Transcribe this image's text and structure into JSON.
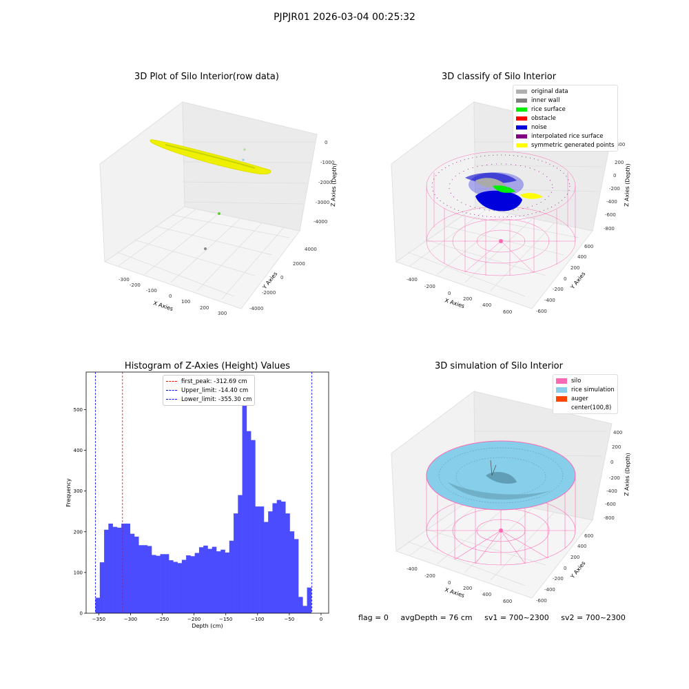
{
  "suptitle": "PJPJR01 2026-03-04 00:25:32",
  "panels": {
    "raw": {
      "title": "3D Plot of Silo Interior(row data)",
      "xlabel": "X Axies",
      "ylabel": "Y Axies",
      "zlabel": "Z Axies (Depth)",
      "xticks": [
        "-300",
        "-200",
        "-100",
        "0",
        "100",
        "200",
        "300"
      ],
      "yticks": [
        "-4000",
        "-2000",
        "0",
        "2000",
        "4000"
      ],
      "zticks": [
        "-4000",
        "-3000",
        "-2000",
        "-1000",
        "0"
      ]
    },
    "classify": {
      "title": "3D classify of Silo Interior",
      "xlabel": "X Axies",
      "ylabel": "Y Axies",
      "zlabel": "Z Axies (Depth)",
      "xticks": [
        "-400",
        "-200",
        "0",
        "200",
        "400",
        "600"
      ],
      "yticks": [
        "-600",
        "-400",
        "-200",
        "0",
        "200",
        "400",
        "600"
      ],
      "zticks": [
        "-800",
        "-600",
        "-400",
        "-200",
        "0",
        "200",
        "400"
      ],
      "legend": [
        {
          "label": "original data",
          "color": "#b0b0b0"
        },
        {
          "label": "inner wall",
          "color": "#808080"
        },
        {
          "label": "rice surface",
          "color": "#00ee00"
        },
        {
          "label": "obstacle",
          "color": "#ff0000"
        },
        {
          "label": "noise",
          "color": "#0000dd"
        },
        {
          "label": "interpolated rice surface",
          "color": "#800080"
        },
        {
          "label": "symmetric generated points",
          "color": "#ffff00"
        }
      ]
    },
    "hist": {
      "title": "Histogram of Z-Axies (Height) Values",
      "xlabel": "Depth (cm)",
      "ylabel": "Frequency",
      "legend": [
        {
          "label": "first_peak: -312.69 cm",
          "color": "#ff0000"
        },
        {
          "label": "Upper_limit: -14.40 cm",
          "color": "#0000ff"
        },
        {
          "label": "Lower_limit: -355.30 cm",
          "color": "#0000ff"
        }
      ]
    },
    "sim": {
      "title": "3D simulation of Silo Interior",
      "xlabel": "X Axies",
      "ylabel": "Y Axies",
      "zlabel": "Z Axies (Depth)",
      "xticks": [
        "-400",
        "-200",
        "0",
        "200",
        "400",
        "600"
      ],
      "yticks": [
        "-600",
        "-400",
        "-200",
        "0",
        "200",
        "400",
        "600"
      ],
      "zticks": [
        "-800",
        "-600",
        "-400",
        "-200",
        "0",
        "200",
        "400"
      ],
      "legend": [
        {
          "label": "silo",
          "color": "#ff69b4"
        },
        {
          "label": "rice simulation",
          "color": "#87ceeb"
        },
        {
          "label": "auger",
          "color": "#ff4500"
        },
        {
          "label": "center(100,8)",
          "color": "#ffffff"
        }
      ]
    }
  },
  "status": {
    "flag": "flag = 0",
    "avg": "avgDepth = 76 cm",
    "sv1": "sv1 = 700~2300",
    "sv2": "sv2 = 700~2300"
  },
  "chart_data": [
    {
      "type": "bar",
      "title": "Histogram of Z-Axies (Height) Values",
      "xlabel": "Depth (cm)",
      "ylabel": "Frequency",
      "xlim": [
        -370,
        12
      ],
      "ylim": [
        0,
        592
      ],
      "xticks": [
        -350,
        -300,
        -250,
        -200,
        -150,
        -100,
        -50,
        0
      ],
      "yticks": [
        0,
        100,
        200,
        300,
        400,
        500
      ],
      "bin_width": 6.8,
      "bin_start": -355.3,
      "values": [
        38,
        125,
        205,
        220,
        212,
        210,
        220,
        220,
        195,
        188,
        167,
        167,
        165,
        143,
        141,
        145,
        145,
        130,
        126,
        123,
        131,
        142,
        140,
        148,
        162,
        166,
        158,
        163,
        152,
        156,
        149,
        178,
        245,
        290,
        565,
        447,
        425,
        262,
        262,
        224,
        250,
        270,
        278,
        274,
        245,
        201,
        182,
        40,
        18,
        63
      ],
      "color": "#4c4cff",
      "vlines": [
        {
          "name": "first_peak: -312.69 cm",
          "x": -312.69,
          "color": "#ff0000"
        },
        {
          "name": "Upper_limit: -14.40 cm",
          "x": -14.4,
          "color": "#0000ff"
        },
        {
          "name": "Lower_limit: -355.30 cm",
          "x": -355.3,
          "color": "#0000ff"
        }
      ],
      "legend_position": "upper center"
    }
  ]
}
